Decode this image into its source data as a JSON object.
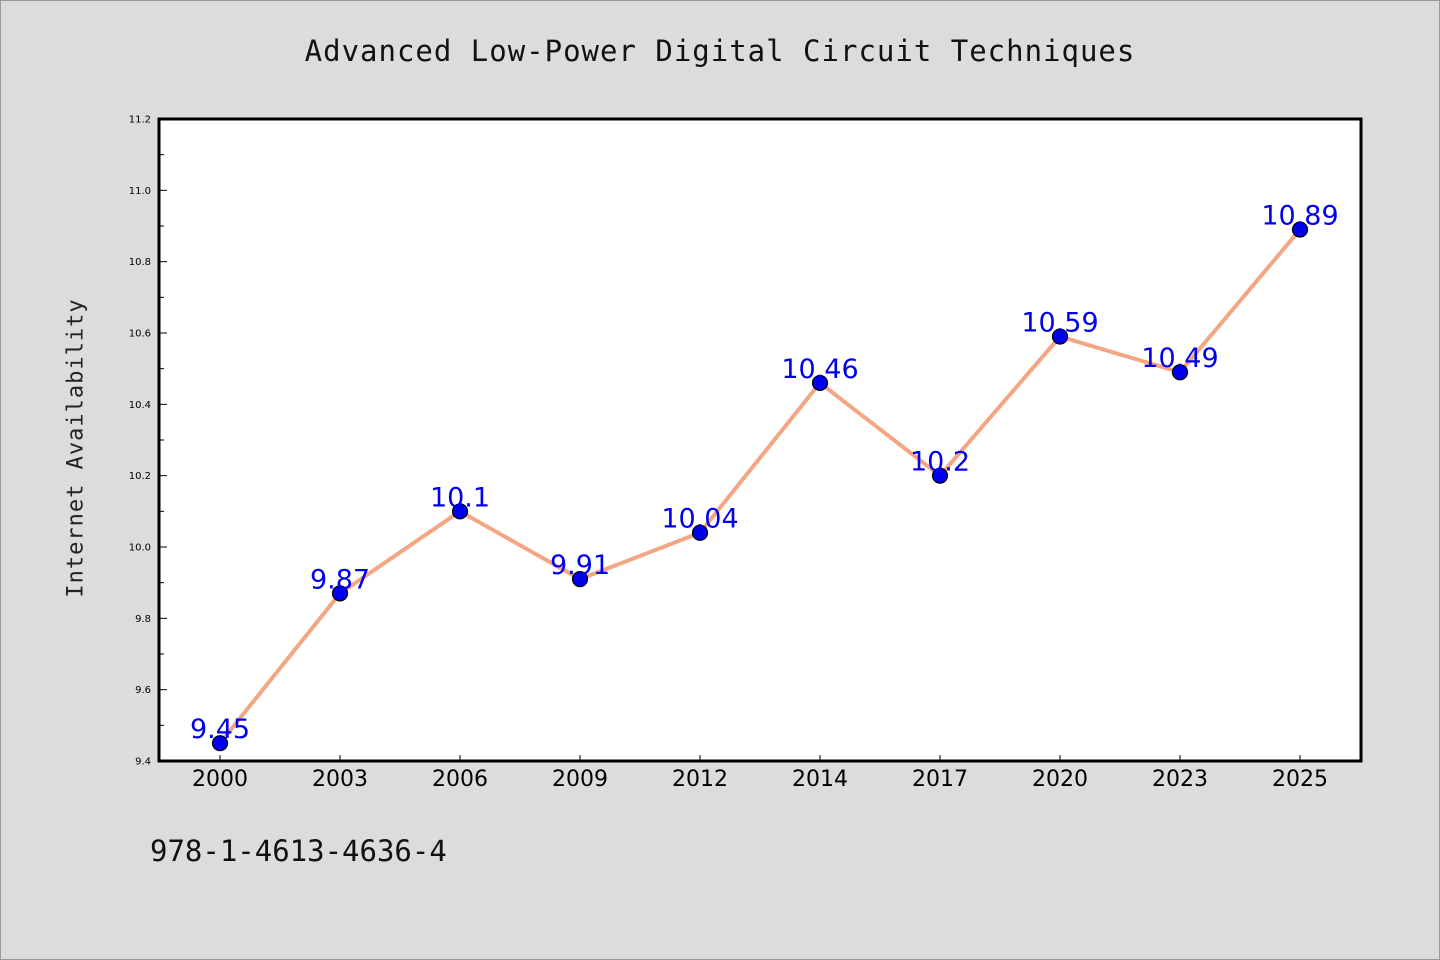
{
  "chart_data": {
    "type": "line",
    "title": "Advanced Low-Power Digital Circuit Techniques",
    "xlabel": "",
    "ylabel": "Internet Availability",
    "x": [
      "2000",
      "2003",
      "2006",
      "2009",
      "2012",
      "2014",
      "2017",
      "2020",
      "2023",
      "2025"
    ],
    "series": [
      {
        "values": [
          9.45,
          9.87,
          10.1,
          9.91,
          10.04,
          10.46,
          10.2,
          10.59,
          10.49,
          10.89
        ]
      }
    ],
    "data_labels": [
      "9.45",
      "9.87",
      "10.1",
      "9.91",
      "10.04",
      "10.46",
      "10.2",
      "10.59",
      "10.49",
      "10.89"
    ],
    "ylim": [
      9.4,
      11.2
    ],
    "yticks": [
      "9.4",
      "9.6",
      "9.8",
      "10.0",
      "10.2",
      "10.4",
      "10.6",
      "10.8",
      "11.0",
      "11.2"
    ],
    "grid": false,
    "legend": "none",
    "colors": {
      "line": "#f4a582",
      "marker": "#0000ee",
      "label": "#0000ee",
      "background": "#dcdcdc",
      "plot_area": "#ffffff"
    }
  },
  "footer": {
    "isbn": "978-1-4613-4636-4"
  }
}
